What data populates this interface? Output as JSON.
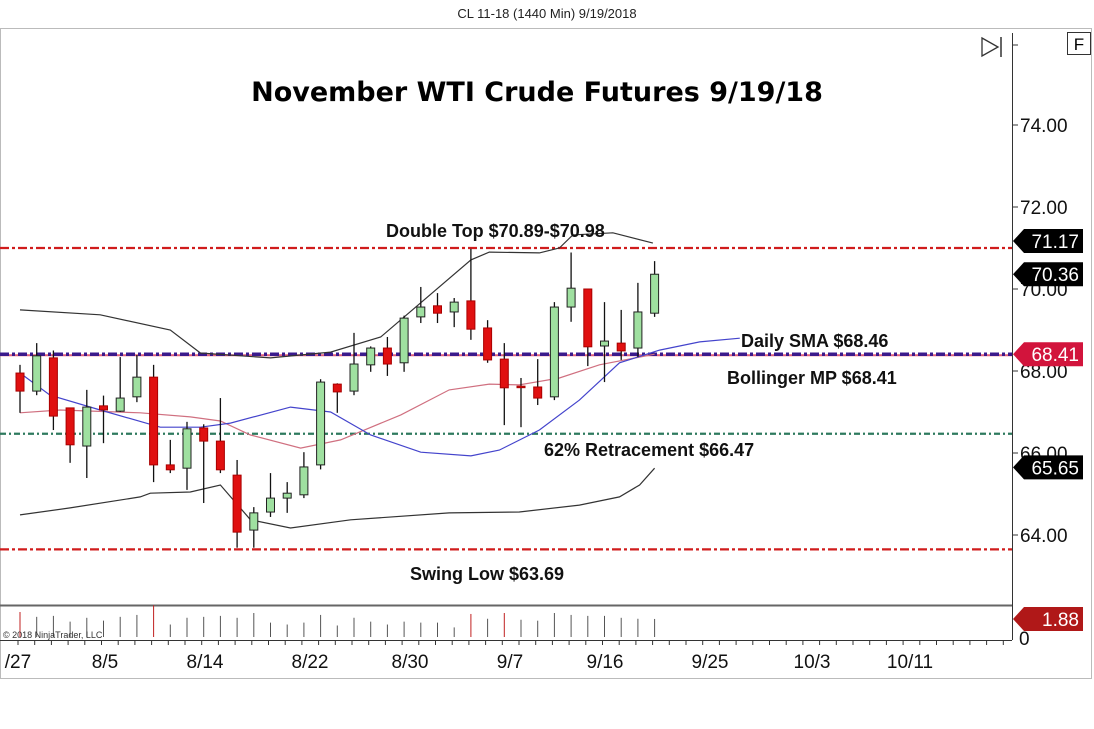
{
  "header": {
    "instrument_label": "CL 11-18 (1440 Min)  9/19/2018"
  },
  "toolbar": {
    "scroll_end_icon": "play-to-end-icon",
    "f_button": "F"
  },
  "copyright": "© 2018 NinjaTrader, LLC",
  "chart_data": {
    "type": "candlestick",
    "title": "November WTI Crude Futures 9/19/18",
    "y_ticks": [
      "74.00",
      "72.00",
      "70.00",
      "68.00",
      "66.00",
      "64.00"
    ],
    "ylim": [
      63.2,
      75.2
    ],
    "x_ticks": [
      "/27",
      "8/5",
      "8/14",
      "8/22",
      "8/30",
      "9/7",
      "9/16",
      "9/25",
      "10/3",
      "10/11"
    ],
    "candles": [
      {
        "o": 67.95,
        "h": 68.15,
        "l": 66.98,
        "c": 67.51
      },
      {
        "o": 67.51,
        "h": 68.68,
        "l": 67.41,
        "c": 68.37
      },
      {
        "o": 68.32,
        "h": 68.5,
        "l": 66.56,
        "c": 66.9
      },
      {
        "o": 67.1,
        "h": 67.1,
        "l": 65.76,
        "c": 66.2
      },
      {
        "o": 66.17,
        "h": 67.54,
        "l": 65.39,
        "c": 67.12
      },
      {
        "o": 67.15,
        "h": 67.4,
        "l": 66.24,
        "c": 67.05
      },
      {
        "o": 67.02,
        "h": 68.34,
        "l": 67.0,
        "c": 67.34
      },
      {
        "o": 67.37,
        "h": 68.39,
        "l": 67.24,
        "c": 67.85
      },
      {
        "o": 67.85,
        "h": 68.15,
        "l": 65.29,
        "c": 65.71
      },
      {
        "o": 65.71,
        "h": 66.32,
        "l": 65.51,
        "c": 65.59
      },
      {
        "o": 65.63,
        "h": 66.76,
        "l": 65.1,
        "c": 66.59
      },
      {
        "o": 66.61,
        "h": 66.7,
        "l": 64.78,
        "c": 66.29
      },
      {
        "o": 66.29,
        "h": 67.34,
        "l": 65.51,
        "c": 65.59
      },
      {
        "o": 65.46,
        "h": 65.83,
        "l": 63.69,
        "c": 64.07
      },
      {
        "o": 64.12,
        "h": 64.68,
        "l": 63.69,
        "c": 64.54
      },
      {
        "o": 64.56,
        "h": 65.51,
        "l": 64.44,
        "c": 64.9
      },
      {
        "o": 64.9,
        "h": 65.29,
        "l": 64.54,
        "c": 65.02
      },
      {
        "o": 64.98,
        "h": 66.02,
        "l": 64.9,
        "c": 65.66
      },
      {
        "o": 65.71,
        "h": 67.8,
        "l": 65.6,
        "c": 67.73
      },
      {
        "o": 67.68,
        "h": 67.7,
        "l": 66.98,
        "c": 67.49
      },
      {
        "o": 67.51,
        "h": 68.93,
        "l": 67.41,
        "c": 68.17
      },
      {
        "o": 68.15,
        "h": 68.6,
        "l": 67.98,
        "c": 68.56
      },
      {
        "o": 68.56,
        "h": 68.83,
        "l": 67.88,
        "c": 68.17
      },
      {
        "o": 68.2,
        "h": 69.35,
        "l": 67.98,
        "c": 69.29
      },
      {
        "o": 69.32,
        "h": 70.05,
        "l": 69.17,
        "c": 69.56
      },
      {
        "o": 69.59,
        "h": 69.9,
        "l": 69.17,
        "c": 69.41
      },
      {
        "o": 69.44,
        "h": 69.78,
        "l": 69.07,
        "c": 69.68
      },
      {
        "o": 69.71,
        "h": 70.98,
        "l": 68.76,
        "c": 69.02
      },
      {
        "o": 69.05,
        "h": 69.24,
        "l": 68.2,
        "c": 68.27
      },
      {
        "o": 68.29,
        "h": 68.68,
        "l": 66.68,
        "c": 67.59
      },
      {
        "o": 67.63,
        "h": 67.83,
        "l": 66.63,
        "c": 67.61
      },
      {
        "o": 67.61,
        "h": 68.29,
        "l": 67.17,
        "c": 67.34
      },
      {
        "o": 67.37,
        "h": 69.68,
        "l": 67.29,
        "c": 69.56
      },
      {
        "o": 69.56,
        "h": 70.89,
        "l": 69.2,
        "c": 70.02
      },
      {
        "o": 70.0,
        "h": 70.0,
        "l": 68.12,
        "c": 68.59
      },
      {
        "o": 68.61,
        "h": 69.68,
        "l": 67.73,
        "c": 68.73
      },
      {
        "o": 68.68,
        "h": 69.49,
        "l": 68.27,
        "c": 68.49
      },
      {
        "o": 68.56,
        "h": 70.15,
        "l": 68.34,
        "c": 69.44
      },
      {
        "o": 69.41,
        "h": 70.68,
        "l": 69.32,
        "c": 70.36
      }
    ],
    "volume": [
      2.6,
      2.1,
      2.2,
      1.6,
      2.0,
      1.7,
      2.1,
      2.3,
      3.3,
      1.3,
      2.0,
      2.1,
      2.2,
      2.0,
      2.5,
      1.5,
      1.3,
      1.5,
      2.3,
      1.2,
      2.0,
      1.6,
      1.3,
      1.6,
      1.5,
      1.5,
      1.0,
      2.4,
      1.9,
      2.5,
      1.8,
      1.7,
      2.5,
      2.3,
      2.2,
      2.2,
      2.0,
      1.9,
      1.88
    ],
    "indicators": {
      "bollinger_upper": [
        [
          0,
          69.49
        ],
        [
          4.8,
          69.37
        ],
        [
          9,
          69.0
        ],
        [
          10.8,
          68.44
        ],
        [
          15,
          68.32
        ],
        [
          18.6,
          68.46
        ],
        [
          21.6,
          68.83
        ],
        [
          27,
          70.71
        ],
        [
          28.1,
          70.9
        ],
        [
          31.1,
          70.88
        ],
        [
          32.3,
          71.0
        ],
        [
          33.1,
          71.32
        ],
        [
          35.5,
          71.37
        ],
        [
          37.9,
          71.12
        ]
      ],
      "bollinger_lower": [
        [
          0,
          64.49
        ],
        [
          3,
          64.66
        ],
        [
          7.2,
          64.93
        ],
        [
          7.8,
          65.02
        ],
        [
          10.2,
          65.05
        ],
        [
          12,
          65.22
        ],
        [
          13.8,
          64.37
        ],
        [
          16.2,
          64.17
        ],
        [
          19.8,
          64.37
        ],
        [
          25.7,
          64.54
        ],
        [
          29.9,
          64.56
        ],
        [
          33.5,
          64.73
        ],
        [
          35.9,
          64.93
        ],
        [
          37.1,
          65.22
        ],
        [
          38,
          65.63
        ]
      ],
      "bollinger_mid": [
        [
          0,
          66.98
        ],
        [
          2.4,
          67.05
        ],
        [
          7.2,
          66.98
        ],
        [
          10.2,
          66.88
        ],
        [
          12,
          66.78
        ],
        [
          13.8,
          66.44
        ],
        [
          16.8,
          66.12
        ],
        [
          19.2,
          66.32
        ],
        [
          22.8,
          66.93
        ],
        [
          25.7,
          67.54
        ],
        [
          28.1,
          67.68
        ],
        [
          29.9,
          67.66
        ],
        [
          32.3,
          67.83
        ],
        [
          34.7,
          68.15
        ],
        [
          38,
          68.41
        ]
      ],
      "daily_sma": [
        [
          0,
          67.95
        ],
        [
          1.8,
          67.41
        ],
        [
          4.8,
          67.05
        ],
        [
          8.4,
          66.63
        ],
        [
          10.8,
          66.63
        ],
        [
          12.6,
          66.73
        ],
        [
          16.2,
          67.12
        ],
        [
          18.6,
          67.0
        ],
        [
          21,
          66.44
        ],
        [
          24,
          66.02
        ],
        [
          27,
          65.93
        ],
        [
          28.7,
          66.07
        ],
        [
          31.1,
          66.56
        ],
        [
          33.5,
          67.29
        ],
        [
          35.9,
          68.2
        ],
        [
          38.3,
          68.51
        ],
        [
          40.7,
          68.71
        ],
        [
          43.1,
          68.8
        ]
      ]
    },
    "levels": [
      {
        "price": 71.0,
        "color": "#d01c1c",
        "label": "Double Top $70.89-$70.98"
      },
      {
        "price": 68.41,
        "color": "#3a1a8c",
        "label": "Bollinger MP $68.41"
      },
      {
        "price": 66.47,
        "color": "#2e7a5e",
        "label": "62% Retracement $66.47"
      },
      {
        "price": 63.65,
        "color": "#d01c1c",
        "label": "Swing Low $63.69"
      }
    ],
    "sma_label": "Daily SMA $68.46",
    "price_markers": [
      {
        "value": "71.17",
        "price": 71.17,
        "color": "#000000"
      },
      {
        "value": "70.36",
        "price": 70.36,
        "color": "#000000"
      },
      {
        "value": "68.41",
        "price": 68.41,
        "color": "#d2143c"
      },
      {
        "value": "65.65",
        "price": 65.65,
        "color": "#000000"
      }
    ],
    "volume_marker": {
      "value": "1.88",
      "color": "#b01818"
    },
    "volume_axis_label": "0",
    "colors": {
      "up": "#9fe0a0",
      "down": "#e01010",
      "upper_lower_band": "#333333",
      "mid": "#d07080",
      "sma": "#4444cc"
    }
  }
}
